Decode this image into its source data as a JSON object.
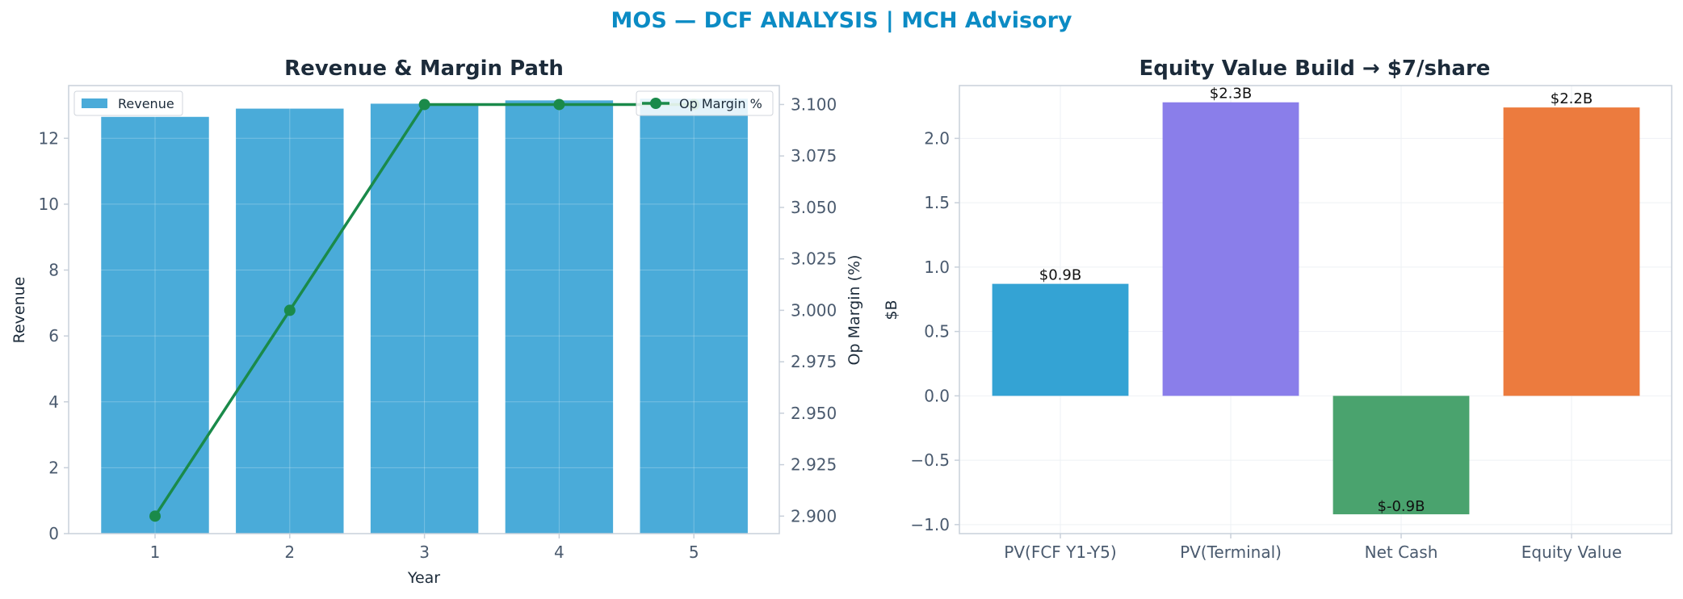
{
  "suptitle": "MOS — DCF ANALYSIS | MCH Advisory",
  "colors": {
    "title": "#0b8bc4",
    "text": "#1c2b3a",
    "tick": "#4a5a6e",
    "axis": "#c8d0da",
    "grid": "#eef1f4",
    "revenue_bar": "#4aabd9",
    "margin_line": "#1a8a4a"
  },
  "chart_data": [
    {
      "type": "bar",
      "title": "Revenue & Margin Path",
      "xlabel": "Year",
      "ylabel": "Revenue",
      "y2label": "Op Margin (%)",
      "categories": [
        1,
        2,
        3,
        4,
        5
      ],
      "series": [
        {
          "name": "Revenue",
          "type": "bar",
          "axis": "left",
          "color": "#4aabd9",
          "values": [
            12.65,
            12.9,
            13.05,
            13.15,
            13.2
          ]
        },
        {
          "name": "Op Margin %",
          "type": "line",
          "axis": "right",
          "color": "#1a8a4a",
          "values": [
            2.9,
            3.0,
            3.1,
            3.1,
            3.1
          ]
        }
      ],
      "ylim": [
        0,
        13.6
      ],
      "yticks": [
        0,
        2,
        4,
        6,
        8,
        10,
        12
      ],
      "y2lim": [
        2.8915,
        3.1092
      ],
      "y2ticks": [
        "2.900",
        "2.925",
        "2.950",
        "2.975",
        "3.000",
        "3.025",
        "3.050",
        "3.075",
        "3.100"
      ],
      "xticks": [
        "1",
        "2",
        "3",
        "4",
        "5"
      ],
      "grid": true,
      "legend_left": "top-left",
      "legend_right": "top-right"
    },
    {
      "type": "bar",
      "title": "Equity Value Build → $7/share",
      "xlabel": "",
      "ylabel": "$B",
      "categories": [
        "PV(FCF Y1-Y5)",
        "PV(Terminal)",
        "Net Cash",
        "Equity Value"
      ],
      "values": [
        0.87,
        2.28,
        -0.92,
        2.24
      ],
      "data_labels": [
        "$0.9B",
        "$2.3B",
        "$-0.9B",
        "$2.2B"
      ],
      "colors": [
        "#34a3d4",
        "#8a7eea",
        "#4aa36e",
        "#ec7b3e"
      ],
      "ylim": [
        -1.07,
        2.41
      ],
      "yticks": [
        "−1.0",
        "−0.5",
        "0.0",
        "0.5",
        "1.0",
        "1.5",
        "2.0"
      ],
      "grid": true
    }
  ]
}
